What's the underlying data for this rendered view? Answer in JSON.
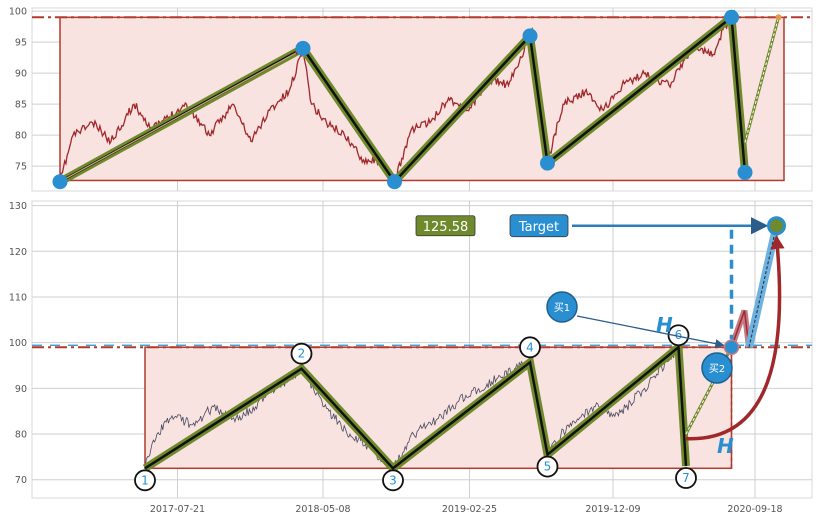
{
  "chart_data": [
    {
      "type": "line",
      "panel": "top",
      "ylim": [
        71,
        100.5
      ],
      "y_ticks": [
        75,
        80,
        85,
        90,
        95,
        100
      ],
      "grid": true,
      "resistance_level": 99,
      "support_level": 72.7,
      "pattern_points": [
        {
          "x": "2016-11-28",
          "y": 72.5
        },
        {
          "x": "2018-03-29",
          "y": 94
        },
        {
          "x": "2018-09-28",
          "y": 72.5
        },
        {
          "x": "2019-06-26",
          "y": 96
        },
        {
          "x": "2019-07-31",
          "y": 75.5
        },
        {
          "x": "2020-08-02",
          "y": 99
        },
        {
          "x": "2020-08-29",
          "y": 74
        },
        {
          "x": "2020-11-04",
          "y": 99
        }
      ],
      "price_series": [
        {
          "x": "2016-11-28",
          "y": 72.5
        },
        {
          "x": "2016-12-24",
          "y": 80
        },
        {
          "x": "2017-02-01",
          "y": 82
        },
        {
          "x": "2017-03-10",
          "y": 79
        },
        {
          "x": "2017-04-25",
          "y": 85
        },
        {
          "x": "2017-06-01",
          "y": 81
        },
        {
          "x": "2017-08-08",
          "y": 85
        },
        {
          "x": "2017-09-23",
          "y": 80
        },
        {
          "x": "2017-11-08",
          "y": 85
        },
        {
          "x": "2017-12-15",
          "y": 79
        },
        {
          "x": "2018-01-21",
          "y": 84
        },
        {
          "x": "2018-03-01",
          "y": 87
        },
        {
          "x": "2018-03-29",
          "y": 94
        },
        {
          "x": "2018-04-15",
          "y": 85
        },
        {
          "x": "2018-05-15",
          "y": 82
        },
        {
          "x": "2018-06-20",
          "y": 80
        },
        {
          "x": "2018-07-28",
          "y": 76
        },
        {
          "x": "2018-09-01",
          "y": 76
        },
        {
          "x": "2018-09-28",
          "y": 72.5
        },
        {
          "x": "2018-11-01",
          "y": 81
        },
        {
          "x": "2018-12-08",
          "y": 82
        },
        {
          "x": "2019-01-14",
          "y": 86
        },
        {
          "x": "2019-02-21",
          "y": 84
        },
        {
          "x": "2019-04-08",
          "y": 89
        },
        {
          "x": "2019-05-14",
          "y": 88
        },
        {
          "x": "2019-06-26",
          "y": 96
        },
        {
          "x": "2019-07-31",
          "y": 75.5
        },
        {
          "x": "2019-08-31",
          "y": 85
        },
        {
          "x": "2019-10-14",
          "y": 87
        },
        {
          "x": "2019-11-20",
          "y": 84
        },
        {
          "x": "2019-12-27",
          "y": 88
        },
        {
          "x": "2020-02-12",
          "y": 90
        },
        {
          "x": "2020-03-30",
          "y": 88
        },
        {
          "x": "2020-05-14",
          "y": 94
        },
        {
          "x": "2020-06-29",
          "y": 93
        },
        {
          "x": "2020-07-16",
          "y": 97
        },
        {
          "x": "2020-08-02",
          "y": 99
        },
        {
          "x": "2020-08-29",
          "y": 74
        }
      ],
      "projection": {
        "from": {
          "x": "2020-08-29",
          "y": 74
        },
        "to": {
          "x": "2020-11-04",
          "y": 99
        }
      }
    },
    {
      "type": "line",
      "panel": "bottom",
      "ylim": [
        66,
        131
      ],
      "y_ticks": [
        70,
        80,
        90,
        100,
        110,
        120,
        130
      ],
      "x_ticks": [
        "2017-07-21",
        "2018-05-08",
        "2019-02-25",
        "2019-12-09",
        "2020-09-18"
      ],
      "grid": true,
      "resistance_level": 99,
      "support_level": 72.5,
      "pattern_points": [
        {
          "label": "1",
          "x": "2017-05-17",
          "y": 72.5
        },
        {
          "label": "2",
          "x": "2018-03-26",
          "y": 94.3
        },
        {
          "label": "3",
          "x": "2018-09-25",
          "y": 72.5
        },
        {
          "label": "4",
          "x": "2019-06-26",
          "y": 95.7
        },
        {
          "label": "5",
          "x": "2019-07-31",
          "y": 75.5
        },
        {
          "label": "6",
          "x": "2020-04-18",
          "y": 99
        },
        {
          "label": "7",
          "x": "2020-05-03",
          "y": 73
        }
      ],
      "price_series": [
        {
          "x": "2017-05-17",
          "y": 72.5
        },
        {
          "x": "2017-06-10",
          "y": 80
        },
        {
          "x": "2017-07-10",
          "y": 84
        },
        {
          "x": "2017-08-20",
          "y": 82
        },
        {
          "x": "2017-10-01",
          "y": 86
        },
        {
          "x": "2017-11-20",
          "y": 83
        },
        {
          "x": "2018-01-10",
          "y": 88
        },
        {
          "x": "2018-03-26",
          "y": 94.3
        },
        {
          "x": "2018-05-20",
          "y": 85
        },
        {
          "x": "2018-07-01",
          "y": 80
        },
        {
          "x": "2018-08-20",
          "y": 76
        },
        {
          "x": "2018-09-25",
          "y": 72.5
        },
        {
          "x": "2018-11-05",
          "y": 80
        },
        {
          "x": "2018-12-20",
          "y": 83
        },
        {
          "x": "2019-02-01",
          "y": 87
        },
        {
          "x": "2019-04-01",
          "y": 91
        },
        {
          "x": "2019-06-26",
          "y": 95.7
        },
        {
          "x": "2019-07-31",
          "y": 75.5
        },
        {
          "x": "2019-09-10",
          "y": 82
        },
        {
          "x": "2019-11-01",
          "y": 86
        },
        {
          "x": "2019-12-20",
          "y": 84
        },
        {
          "x": "2020-02-10",
          "y": 90
        },
        {
          "x": "2020-04-18",
          "y": 99
        },
        {
          "x": "2020-05-03",
          "y": 73
        }
      ],
      "breakout": {
        "x": "2020-08-02",
        "y": 99
      },
      "pullback": {
        "peak": {
          "x": "2020-08-28",
          "y": 107
        },
        "low": {
          "x": "2020-09-06",
          "y": 99
        }
      },
      "target": {
        "x": "2020-10-31",
        "y": 125.58
      },
      "target_value_label": "125.58",
      "target_label": "Target",
      "buy1_label": "买1",
      "buy2_label": "买2",
      "height_label": "H",
      "height_label_2": "H"
    }
  ],
  "colors": {
    "zone_fill": "#f9e3e0",
    "zone_border": "#b03a2e",
    "price_line_top": "#a0282b",
    "price_line_bottom": "#4a4a60",
    "pattern_outer": "#6f8a2c",
    "pattern_inner": "#111111",
    "marker_blue": "#2a8fd0",
    "target_badge": "#6f8a2c",
    "curve_red": "#a0282b",
    "grid": "#cfcfcf"
  }
}
